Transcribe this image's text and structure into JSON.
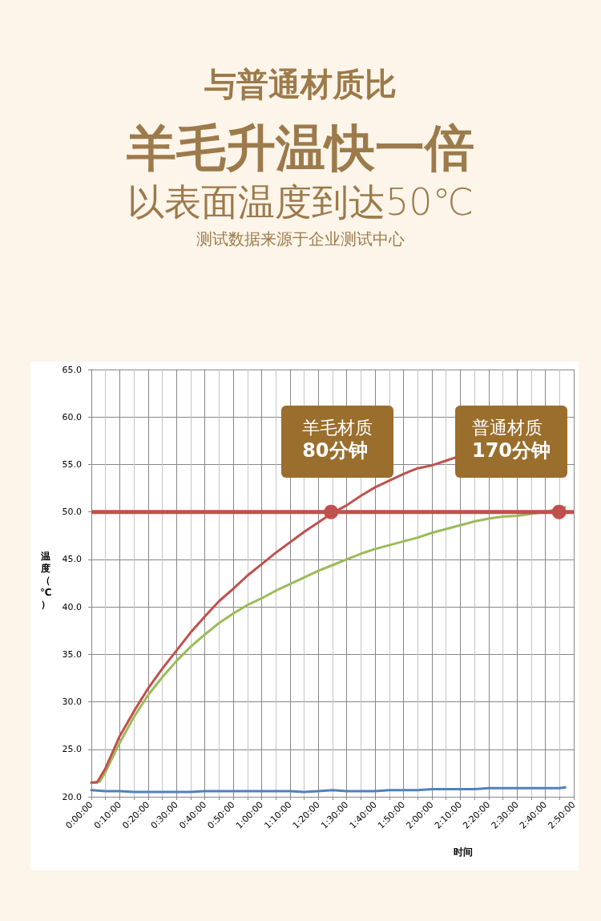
{
  "chart_data": {
    "type": "line",
    "title": "与普通材质比",
    "subtitle": "羊毛升温快一倍",
    "xlabel": "时间",
    "ylabel": "温度（℃）",
    "annotations": [
      "以表面温度到达50℃",
      "测试数据来源于企业测试中心",
      {
        "text": "羊毛材质\n80分钟",
        "x": 1.408,
        "y": 50
      },
      {
        "text": "普通材质\n170分钟",
        "x": 2.747,
        "y": 50
      }
    ],
    "xlim": [
      0,
      2.8333
    ],
    "xticks": [
      {
        "value": 0,
        "label": "0:00:00"
      },
      {
        "value": 0.0833,
        "label": null
      },
      {
        "value": 0.1667,
        "label": "0:10:00"
      },
      {
        "value": 0.25,
        "label": null
      },
      {
        "value": 0.3333,
        "label": "0:20:00"
      },
      {
        "value": 0.4167,
        "label": null
      },
      {
        "value": 0.5,
        "label": "0:30:00"
      },
      {
        "value": 0.5833,
        "label": null
      },
      {
        "value": 0.6667,
        "label": "0:40:00"
      },
      {
        "value": 0.75,
        "label": null
      },
      {
        "value": 0.8333,
        "label": "0:50:00"
      },
      {
        "value": 0.9167,
        "label": null
      },
      {
        "value": 1,
        "label": "1:00:00"
      },
      {
        "value": 1.0833,
        "label": null
      },
      {
        "value": 1.1667,
        "label": "1:10:00"
      },
      {
        "value": 1.25,
        "label": null
      },
      {
        "value": 1.3333,
        "label": "1:20:00"
      },
      {
        "value": 1.4167,
        "label": null
      },
      {
        "value": 1.5,
        "label": "1:30:00"
      },
      {
        "value": 1.5833,
        "label": null
      },
      {
        "value": 1.6667,
        "label": "1:40:00"
      },
      {
        "value": 1.75,
        "label": null
      },
      {
        "value": 1.8333,
        "label": "1:50:00"
      },
      {
        "value": 1.9167,
        "label": null
      },
      {
        "value": 2,
        "label": "2:00:00"
      },
      {
        "value": 2.0833,
        "label": null
      },
      {
        "value": 2.1667,
        "label": "2:10:00"
      },
      {
        "value": 2.25,
        "label": null
      },
      {
        "value": 2.3333,
        "label": "2:20:00"
      },
      {
        "value": 2.4167,
        "label": null
      },
      {
        "value": 2.5,
        "label": "2:30:00"
      },
      {
        "value": 2.5833,
        "label": null
      },
      {
        "value": 2.6667,
        "label": "2:40:00"
      },
      {
        "value": 2.75,
        "label": null
      },
      {
        "value": 2.8333,
        "label": "2:50:00"
      }
    ],
    "ylim": [
      20,
      65
    ],
    "yticks": [
      {
        "value": 20,
        "label": "20.0"
      },
      {
        "value": 25,
        "label": "25.0"
      },
      {
        "value": 30,
        "label": "30.0"
      },
      {
        "value": 35,
        "label": "35.0"
      },
      {
        "value": 40,
        "label": "40.0"
      },
      {
        "value": 45,
        "label": "45.0"
      },
      {
        "value": 50,
        "label": "50.0"
      },
      {
        "value": 55,
        "label": "55.0"
      },
      {
        "value": 60,
        "label": "60.0"
      },
      {
        "value": 65,
        "label": "65.0"
      }
    ],
    "grid": true,
    "ref_lines": [
      {
        "axis": "y",
        "value": 50,
        "color": "#c0504d"
      }
    ],
    "series": [
      {
        "color": "#4f81bd",
        "x": [
          0,
          0.083,
          0.167,
          0.25,
          0.333,
          0.417,
          0.5,
          0.583,
          0.667,
          0.75,
          0.833,
          0.917,
          1,
          1.083,
          1.167,
          1.25,
          1.333,
          1.417,
          1.5,
          1.583,
          1.667,
          1.75,
          1.833,
          1.917,
          2,
          2.083,
          2.167,
          2.25,
          2.333,
          2.417,
          2.5,
          2.583,
          2.667,
          2.75,
          2.783
        ],
        "values": [
          20.7,
          20.6,
          20.6,
          20.5,
          20.5,
          20.5,
          20.5,
          20.5,
          20.6,
          20.6,
          20.6,
          20.6,
          20.6,
          20.6,
          20.6,
          20.5,
          20.6,
          20.7,
          20.6,
          20.6,
          20.6,
          20.7,
          20.7,
          20.7,
          20.8,
          20.8,
          20.8,
          20.8,
          20.9,
          20.9,
          20.9,
          20.9,
          20.9,
          20.9,
          21.0
        ]
      },
      {
        "color": "#9bbb59",
        "x": [
          0,
          0.05,
          0.083,
          0.167,
          0.25,
          0.333,
          0.417,
          0.5,
          0.583,
          0.667,
          0.75,
          0.833,
          0.917,
          1,
          1.083,
          1.167,
          1.25,
          1.333,
          1.417,
          1.5,
          1.583,
          1.667,
          1.75,
          1.833,
          1.917,
          2,
          2.083,
          2.167,
          2.25,
          2.333,
          2.417,
          2.5,
          2.583,
          2.667,
          2.783
        ],
        "values": [
          21.5,
          21.6,
          22.6,
          25.7,
          28.4,
          30.7,
          32.6,
          34.3,
          35.8,
          37.1,
          38.3,
          39.3,
          40.2,
          40.9,
          41.7,
          42.4,
          43.1,
          43.8,
          44.4,
          45.0,
          45.6,
          46.1,
          46.5,
          46.9,
          47.3,
          47.8,
          48.2,
          48.6,
          49.0,
          49.3,
          49.5,
          49.6,
          49.8,
          50.0,
          50.5
        ]
      },
      {
        "color": "#c0504d",
        "x": [
          0,
          0.033,
          0.083,
          0.167,
          0.25,
          0.333,
          0.417,
          0.5,
          0.583,
          0.667,
          0.75,
          0.833,
          0.917,
          1,
          1.083,
          1.167,
          1.25,
          1.333,
          1.417,
          1.5,
          1.583,
          1.667,
          1.75,
          1.833,
          1.917,
          2,
          2.083,
          2.133
        ],
        "values": [
          21.5,
          21.5,
          23.0,
          26.4,
          29.0,
          31.4,
          33.5,
          35.4,
          37.3,
          39.0,
          40.6,
          41.9,
          43.3,
          44.5,
          45.7,
          46.8,
          47.9,
          48.9,
          49.9,
          50.7,
          51.7,
          52.6,
          53.3,
          54.0,
          54.6,
          54.9,
          55.4,
          55.7
        ]
      },
      {
        "type": "scatter",
        "marker": "circle",
        "color": "#c0504d",
        "x": [
          1.408,
          2.747
        ],
        "values": [
          50,
          50
        ]
      }
    ]
  }
}
